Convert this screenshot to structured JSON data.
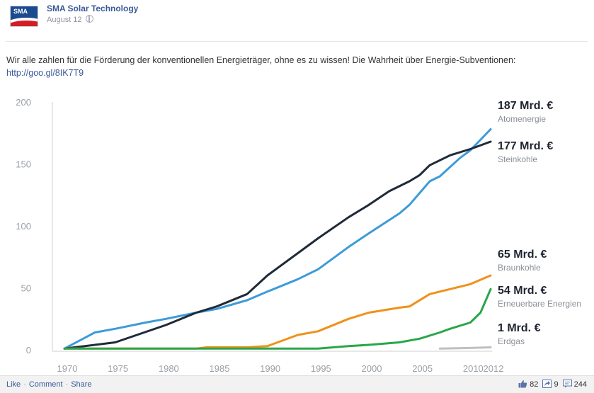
{
  "post": {
    "page_name": "SMA Solar Technology",
    "avatar_text": "SMA",
    "date": "August 12",
    "text": "Wir alle zahlen für die Förderung der konventionellen Energieträger, ohne es zu wissen! Die Wahrheit über Energie-Subventionen:",
    "link": "http://goo.gl/8IK7T9"
  },
  "actions": {
    "like": "Like",
    "comment": "Comment",
    "share": "Share"
  },
  "counts": {
    "likes": "82",
    "shares": "9",
    "comments": "244"
  },
  "colors": {
    "link": "#3b5998",
    "atom": "#3d9bd9",
    "stein": "#1f2a3a",
    "braun": "#f0911a",
    "erneuerbar": "#2aa64a",
    "erdgas": "#bfbfbf"
  },
  "chart_data": {
    "type": "line",
    "title": "",
    "xlabel": "",
    "ylabel": "",
    "xlim": [
      1970,
      2012
    ],
    "ylim": [
      0,
      200
    ],
    "x_ticks": [
      "1970",
      "1975",
      "1980",
      "1985",
      "1990",
      "1995",
      "2000",
      "2005",
      "2010",
      "2012"
    ],
    "y_ticks": [
      "200",
      "150",
      "100",
      "50",
      "0"
    ],
    "grid": false,
    "series": [
      {
        "name": "Atomenergie",
        "total": "187 Mrd. €",
        "color": "#3d9bd9",
        "points": [
          [
            1970,
            1
          ],
          [
            1973,
            14
          ],
          [
            1975,
            17
          ],
          [
            1978,
            22
          ],
          [
            1980,
            25
          ],
          [
            1983,
            30
          ],
          [
            1985,
            33
          ],
          [
            1988,
            40
          ],
          [
            1990,
            47
          ],
          [
            1993,
            57
          ],
          [
            1995,
            65
          ],
          [
            1998,
            83
          ],
          [
            2000,
            94
          ],
          [
            2003,
            110
          ],
          [
            2004,
            117
          ],
          [
            2006,
            136
          ],
          [
            2007,
            140
          ],
          [
            2009,
            155
          ],
          [
            2010,
            161
          ],
          [
            2012,
            178
          ]
        ]
      },
      {
        "name": "Steinkohle",
        "total": "177 Mrd. €",
        "color": "#1f2a3a",
        "points": [
          [
            1970,
            1
          ],
          [
            1975,
            6
          ],
          [
            1980,
            20
          ],
          [
            1983,
            30
          ],
          [
            1985,
            35
          ],
          [
            1988,
            45
          ],
          [
            1990,
            60
          ],
          [
            1993,
            78
          ],
          [
            1995,
            90
          ],
          [
            1998,
            107
          ],
          [
            2000,
            117
          ],
          [
            2002,
            128
          ],
          [
            2004,
            136
          ],
          [
            2005,
            141
          ],
          [
            2006,
            149
          ],
          [
            2008,
            157
          ],
          [
            2010,
            162
          ],
          [
            2012,
            168
          ]
        ]
      },
      {
        "name": "Braunkohle",
        "total": "65 Mrd. €",
        "color": "#f0911a",
        "points": [
          [
            1970,
            1
          ],
          [
            1983,
            1
          ],
          [
            1984,
            2
          ],
          [
            1988,
            2
          ],
          [
            1990,
            3
          ],
          [
            1993,
            12
          ],
          [
            1995,
            15
          ],
          [
            1998,
            25
          ],
          [
            2000,
            30
          ],
          [
            2003,
            34
          ],
          [
            2004,
            35
          ],
          [
            2006,
            45
          ],
          [
            2008,
            49
          ],
          [
            2010,
            53
          ],
          [
            2012,
            60
          ]
        ]
      },
      {
        "name": "Erneuerbare Energien",
        "total": "54 Mrd. €",
        "color": "#2aa64a",
        "points": [
          [
            1970,
            1
          ],
          [
            1995,
            1
          ],
          [
            1998,
            3
          ],
          [
            2000,
            4
          ],
          [
            2003,
            6
          ],
          [
            2005,
            9
          ],
          [
            2007,
            14
          ],
          [
            2008,
            17
          ],
          [
            2010,
            22
          ],
          [
            2011,
            30
          ],
          [
            2012,
            49
          ]
        ]
      },
      {
        "name": "Erdgas",
        "total": "1 Mrd. €",
        "color": "#bfbfbf",
        "points": [
          [
            2007,
            1
          ],
          [
            2010,
            1.5
          ],
          [
            2012,
            2
          ]
        ]
      }
    ]
  }
}
